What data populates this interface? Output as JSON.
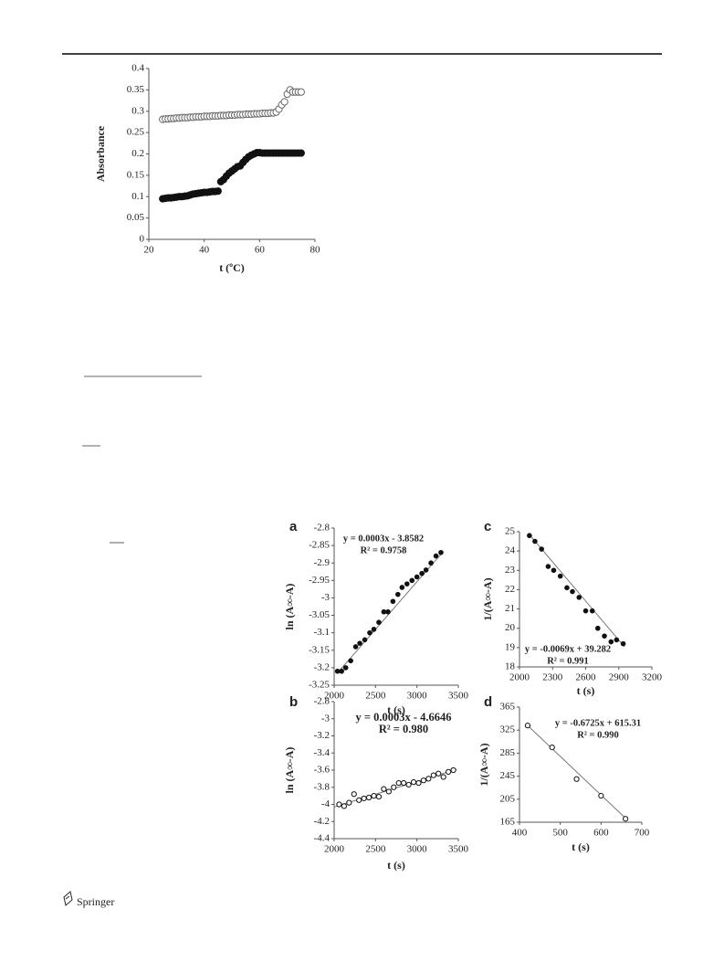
{
  "chart_data": [
    {
      "type": "scatter",
      "x_label": "t (ºC)",
      "y_label": "Absorbance",
      "xlim": [
        20,
        80
      ],
      "xticks": [
        20,
        40,
        60,
        80
      ],
      "ylim": [
        0,
        0.4
      ],
      "yticks": [
        0,
        0.05,
        0.1,
        0.15,
        0.2,
        0.25,
        0.3,
        0.35,
        0.4
      ],
      "x": [
        25,
        26,
        27,
        28,
        29,
        30,
        31,
        32,
        33,
        34,
        35,
        36,
        37,
        38,
        39,
        40,
        41,
        42,
        43,
        44,
        45,
        46,
        47,
        48,
        49,
        50,
        51,
        52,
        53,
        54,
        55,
        56,
        57,
        58,
        59,
        60,
        61,
        62,
        63,
        64,
        65,
        66,
        67,
        68,
        69,
        70,
        71,
        72,
        73,
        74,
        75
      ],
      "series": [
        {
          "marker": "open",
          "color": "#666666",
          "values": [
            0.281,
            0.282,
            0.282,
            0.283,
            0.283,
            0.284,
            0.284,
            0.285,
            0.285,
            0.285,
            0.286,
            0.286,
            0.287,
            0.287,
            0.287,
            0.288,
            0.288,
            0.288,
            0.289,
            0.289,
            0.289,
            0.29,
            0.29,
            0.29,
            0.291,
            0.291,
            0.291,
            0.292,
            0.292,
            0.292,
            0.293,
            0.293,
            0.293,
            0.294,
            0.294,
            0.294,
            0.295,
            0.295,
            0.295,
            0.296,
            0.296,
            0.298,
            0.305,
            0.315,
            0.322,
            0.34,
            0.35,
            0.345,
            0.345,
            0.345,
            0.345
          ]
        },
        {
          "marker": "filled",
          "color": "#111111",
          "values": [
            0.095,
            0.096,
            0.097,
            0.097,
            0.098,
            0.099,
            0.1,
            0.1,
            0.101,
            0.102,
            0.104,
            0.106,
            0.107,
            0.108,
            0.109,
            0.11,
            0.11,
            0.111,
            0.112,
            0.112,
            0.113,
            0.135,
            0.14,
            0.148,
            0.155,
            0.16,
            0.165,
            0.17,
            0.172,
            0.18,
            0.187,
            0.193,
            0.197,
            0.2,
            0.203,
            0.203,
            0.202,
            0.202,
            0.202,
            0.202,
            0.202,
            0.202,
            0.202,
            0.202,
            0.202,
            0.202,
            0.202,
            0.202,
            0.202,
            0.202,
            0.202
          ]
        }
      ]
    },
    {
      "type": "scatter",
      "panel_label": "a",
      "x_label": "t (s)",
      "y_label": "ln (A∞-A)",
      "xlim": [
        2000,
        3500
      ],
      "xticks": [
        2000,
        2500,
        3000,
        3500
      ],
      "ylim": [
        -3.25,
        -2.8
      ],
      "yticks": [
        -3.25,
        -3.2,
        -3.15,
        -3.1,
        -3.05,
        -3,
        -2.95,
        -2.9,
        -2.85,
        -2.8
      ],
      "x": [
        2040,
        2090,
        2140,
        2200,
        2260,
        2310,
        2370,
        2430,
        2480,
        2540,
        2600,
        2650,
        2710,
        2770,
        2820,
        2880,
        2940,
        3000,
        3060,
        3110,
        3170,
        3230,
        3290
      ],
      "series": [
        {
          "marker": "filled",
          "color": "#111111",
          "values": [
            -3.21,
            -3.21,
            -3.2,
            -3.18,
            -3.14,
            -3.13,
            -3.12,
            -3.1,
            -3.09,
            -3.07,
            -3.04,
            -3.04,
            -3.01,
            -2.99,
            -2.97,
            -2.96,
            -2.95,
            -2.94,
            -2.93,
            -2.92,
            -2.9,
            -2.88,
            -2.87
          ]
        }
      ],
      "trendline": {
        "x": [
          2040,
          3290
        ],
        "values": [
          -3.215,
          -2.875
        ]
      },
      "annotations": [
        "y = 0.0003x - 3.8582",
        "R² = 0.9758"
      ]
    },
    {
      "type": "scatter",
      "panel_label": "b",
      "x_label": "t (s)",
      "y_label": "ln (A∞-A)",
      "xlim": [
        2000,
        3500
      ],
      "xticks": [
        2000,
        2500,
        3000,
        3500
      ],
      "ylim": [
        -4.4,
        -2.8
      ],
      "yticks": [
        -4.4,
        -4.2,
        -4,
        -3.8,
        -3.6,
        -3.4,
        -3.2,
        -3,
        -2.8
      ],
      "x": [
        2060,
        2120,
        2180,
        2240,
        2300,
        2360,
        2420,
        2480,
        2540,
        2600,
        2660,
        2720,
        2780,
        2840,
        2900,
        2960,
        3020,
        3080,
        3140,
        3200,
        3260,
        3320,
        3380,
        3440
      ],
      "series": [
        {
          "marker": "open",
          "color": "#111111",
          "values": [
            -4.0,
            -4.02,
            -3.98,
            -3.88,
            -3.95,
            -3.93,
            -3.92,
            -3.9,
            -3.91,
            -3.82,
            -3.85,
            -3.8,
            -3.75,
            -3.75,
            -3.77,
            -3.74,
            -3.75,
            -3.72,
            -3.7,
            -3.66,
            -3.64,
            -3.68,
            -3.62,
            -3.6
          ]
        }
      ],
      "trendline": {
        "x": [
          2000,
          3480
        ],
        "values": [
          -4.03,
          -3.59
        ]
      },
      "annotations": [
        "y = 0.0003x - 4.6646",
        "R² = 0.980"
      ]
    },
    {
      "type": "scatter",
      "panel_label": "c",
      "x_label": "t (s)",
      "y_label": "1/(A∞-A)",
      "xlim": [
        2000,
        3200
      ],
      "xticks": [
        2000,
        2300,
        2600,
        2900,
        3200
      ],
      "ylim": [
        18,
        25
      ],
      "yticks": [
        18,
        19,
        20,
        21,
        22,
        23,
        24,
        25
      ],
      "x": [
        2090,
        2140,
        2200,
        2260,
        2310,
        2370,
        2430,
        2480,
        2540,
        2600,
        2660,
        2710,
        2770,
        2830,
        2880,
        2940
      ],
      "series": [
        {
          "marker": "filled",
          "color": "#111111",
          "values": [
            24.8,
            24.5,
            24.1,
            23.2,
            23.0,
            22.7,
            22.1,
            21.9,
            21.6,
            20.9,
            20.9,
            20.0,
            19.6,
            19.3,
            19.4,
            19.2
          ]
        }
      ],
      "trendline": {
        "x": [
          2090,
          2950
        ],
        "values": [
          24.85,
          19.05
        ]
      },
      "annotations": [
        "y = -0.0069x + 39.282",
        "R² = 0.991"
      ]
    },
    {
      "type": "scatter",
      "panel_label": "d",
      "x_label": "t (s)",
      "y_label": "1/(A∞-A)",
      "xlim": [
        400,
        700
      ],
      "xticks": [
        400,
        500,
        600,
        700
      ],
      "ylim": [
        165,
        365
      ],
      "yticks": [
        165,
        205,
        245,
        285,
        325,
        365
      ],
      "x": [
        420,
        480,
        540,
        600,
        660
      ],
      "series": [
        {
          "marker": "open",
          "color": "#111111",
          "values": [
            333,
            295,
            240,
            211,
            171
          ]
        }
      ],
      "trendline": {
        "x": [
          420,
          660
        ],
        "values": [
          333,
          172
        ]
      },
      "annotations": [
        "y = -0.6725x + 615.31",
        "R² = 0.990"
      ]
    }
  ],
  "footer": "Springer"
}
